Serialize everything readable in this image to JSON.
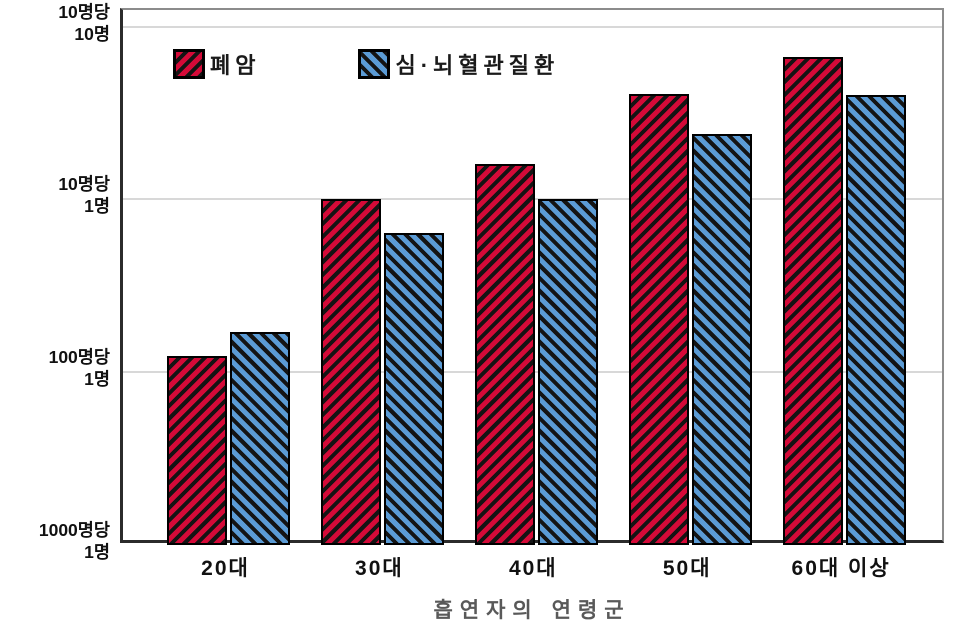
{
  "chart_data": {
    "type": "bar",
    "scale": "log",
    "title": "",
    "xlabel": "흡연자의 연령군",
    "ylabel": "",
    "categories": [
      "20대",
      "30대",
      "40대",
      "50대",
      "60대 이상"
    ],
    "series": [
      {
        "name": "폐암",
        "color": "#d40a38",
        "hatch": "/",
        "values": [
          0.0125,
          0.101,
          0.16,
          0.41,
          0.67
        ]
      },
      {
        "name": "심·뇌혈관질환",
        "color": "#5b9bd5",
        "hatch": "\\",
        "values": [
          0.017,
          0.064,
          0.1,
          0.24,
          0.4
        ]
      }
    ],
    "yticks": [
      {
        "value": 1,
        "label": "10명당\n10명"
      },
      {
        "value": 0.1,
        "label": "10명당\n1명"
      },
      {
        "value": 0.01,
        "label": "100명당\n1명"
      },
      {
        "value": 0.001,
        "label": "1000명당\n1명"
      }
    ],
    "ylim": [
      0.001,
      1.25
    ],
    "grid": true,
    "legend_position": "top-left-inside",
    "hatch_line_color": "#141414"
  }
}
